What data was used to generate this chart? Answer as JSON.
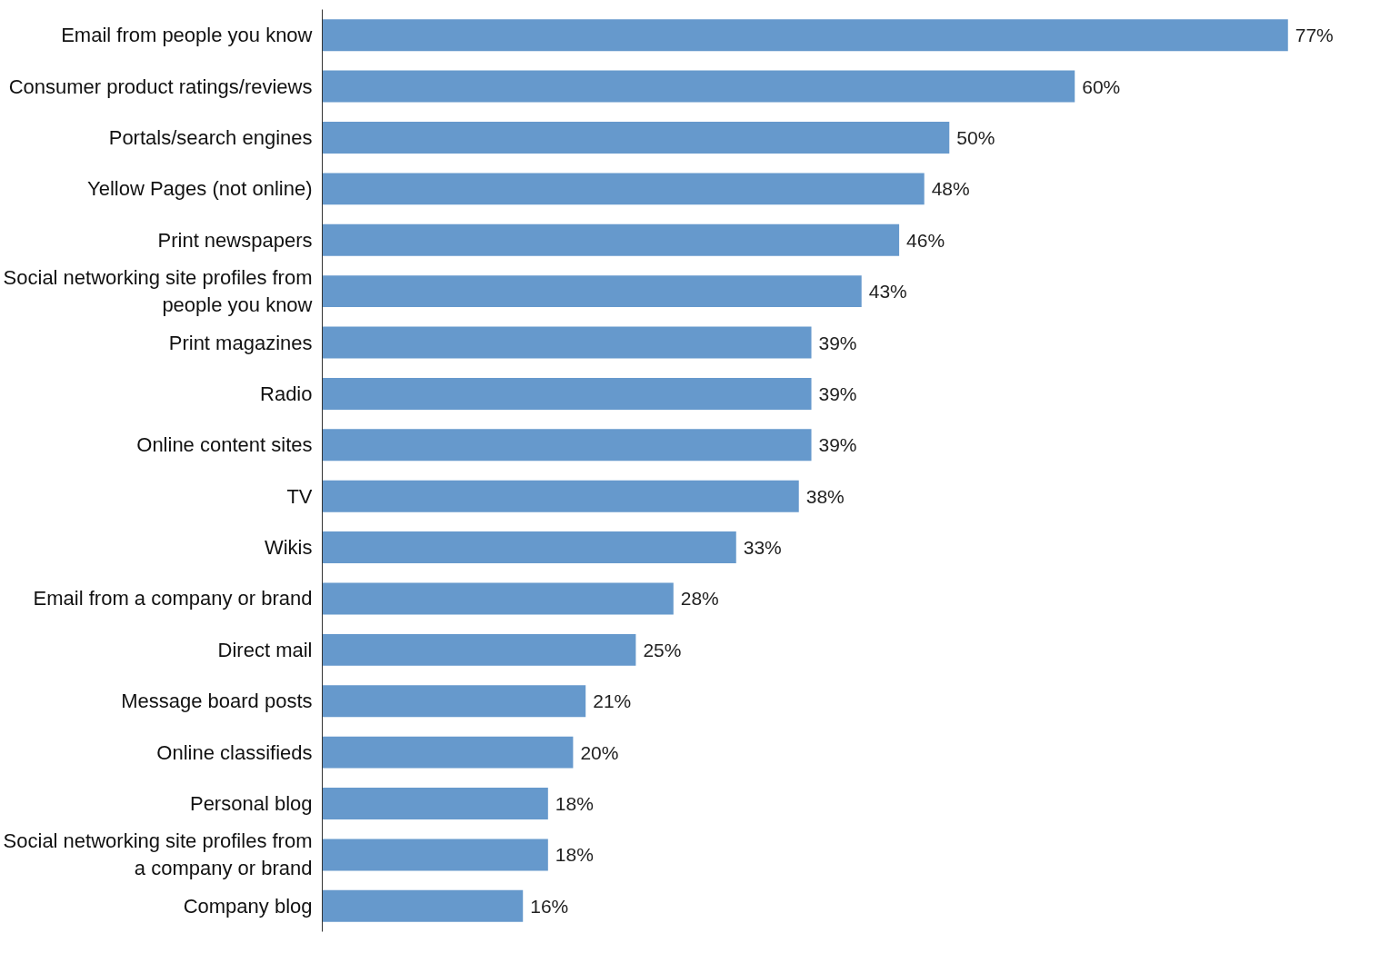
{
  "chart_data": {
    "type": "bar",
    "orientation": "horizontal",
    "tick_labels": "y",
    "grid": false,
    "value_labels": [
      "77%",
      "60%",
      "50%",
      "48%",
      "46%",
      "43%",
      "39%",
      "39%",
      "39%",
      "38%",
      "33%",
      "28%",
      "25%",
      "21%",
      "20%",
      "18%",
      "18%",
      "16%"
    ],
    "categories": [
      "Email from people you know",
      "Consumer product ratings/reviews",
      "Portals/search engines",
      "Yellow Pages (not online)",
      "Print newspapers",
      "Social networking site profiles from people you know",
      "Print magazines",
      "Radio",
      "Online content sites",
      "TV",
      "Wikis",
      "Email from a company or brand",
      "Direct mail",
      "Message board posts",
      "Online classifieds",
      "Personal blog",
      "Social networking site profiles from a company or brand",
      "Company blog"
    ],
    "values": [
      77,
      60,
      50,
      48,
      46,
      43,
      39,
      39,
      39,
      38,
      33,
      28,
      25,
      21,
      20,
      18,
      18,
      16
    ],
    "color": "#6699cc"
  }
}
